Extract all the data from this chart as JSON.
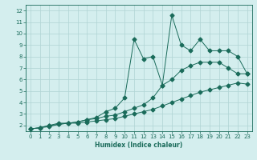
{
  "xlabel": "Humidex (Indice chaleur)",
  "bg_color": "#d4eeee",
  "grid_color": "#b0d4d4",
  "line_color": "#1a6b5a",
  "xlim": [
    -0.5,
    23.5
  ],
  "ylim": [
    1.5,
    12.5
  ],
  "xticks": [
    0,
    1,
    2,
    3,
    4,
    5,
    6,
    7,
    8,
    9,
    10,
    11,
    12,
    13,
    14,
    15,
    16,
    17,
    18,
    19,
    20,
    21,
    22,
    23
  ],
  "yticks": [
    2,
    3,
    4,
    5,
    6,
    7,
    8,
    9,
    10,
    11,
    12
  ],
  "line1_x": [
    0,
    1,
    2,
    3,
    4,
    5,
    6,
    7,
    8,
    9,
    10,
    11,
    12,
    13,
    14,
    15,
    16,
    17,
    18,
    19,
    20,
    21,
    22,
    23
  ],
  "line1_y": [
    1.7,
    1.8,
    1.9,
    2.1,
    2.2,
    2.2,
    2.3,
    2.4,
    2.5,
    2.6,
    2.8,
    3.0,
    3.2,
    3.4,
    3.7,
    4.0,
    4.3,
    4.6,
    4.9,
    5.1,
    5.3,
    5.5,
    5.7,
    5.6
  ],
  "line2_x": [
    0,
    1,
    2,
    3,
    4,
    5,
    6,
    7,
    8,
    9,
    10,
    11,
    12,
    13,
    14,
    15,
    16,
    17,
    18,
    19,
    20,
    21,
    22,
    23
  ],
  "line2_y": [
    1.7,
    1.8,
    2.0,
    2.1,
    2.2,
    2.3,
    2.5,
    2.6,
    2.8,
    2.9,
    3.2,
    3.5,
    3.8,
    4.4,
    5.5,
    6.0,
    6.8,
    7.2,
    7.5,
    7.5,
    7.5,
    7.0,
    6.5,
    6.5
  ],
  "line3_x": [
    0,
    1,
    2,
    3,
    4,
    5,
    6,
    7,
    8,
    9,
    10,
    11,
    12,
    13,
    14,
    15,
    16,
    17,
    18,
    19,
    20,
    21,
    22,
    23
  ],
  "line3_y": [
    1.7,
    1.8,
    2.0,
    2.2,
    2.2,
    2.3,
    2.5,
    2.7,
    3.2,
    3.5,
    4.4,
    9.5,
    7.8,
    8.0,
    5.5,
    11.6,
    9.0,
    8.5,
    9.5,
    8.5,
    8.5,
    8.5,
    8.0,
    6.5
  ],
  "marker": "D",
  "markersize": 2.5
}
